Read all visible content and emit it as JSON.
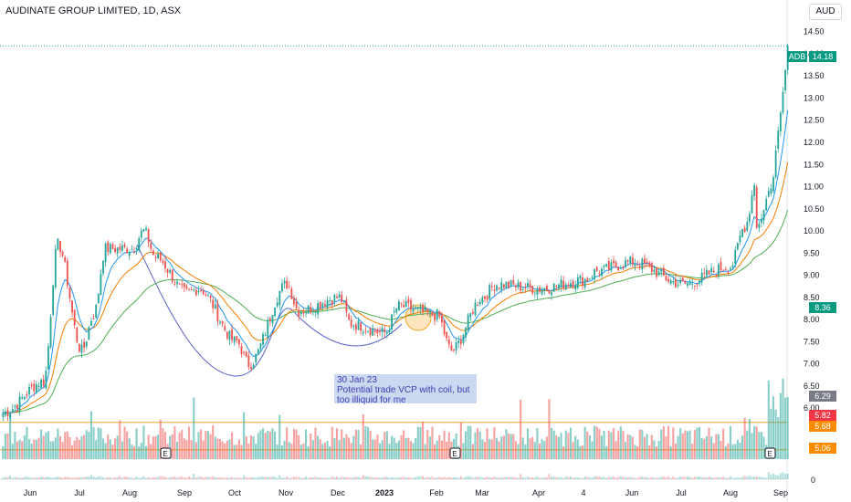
{
  "header": {
    "title": "AUDINATE GROUP LIMITED, 1D, ASX",
    "currency": "AUD"
  },
  "note": {
    "line1": "30 Jan 23",
    "line2": "Potential trade VCP with coil, but",
    "line3": "too illiquid for me"
  },
  "colors": {
    "up": "#26a69a",
    "down": "#ef5350",
    "ma_fast": "#2196f3",
    "ma_mid": "#f57c00",
    "ma_slow": "#4caf50",
    "curve": "#5b62c9",
    "hline": "#f5a623"
  },
  "price_tags": [
    {
      "label": "ADB",
      "value": "14.18",
      "bg": "#089981",
      "price": 14.18
    },
    {
      "label": "",
      "value": "8.36",
      "bg": "#089981",
      "price": 8.36
    },
    {
      "label": "",
      "value": "6.29",
      "bg": "#787b86",
      "price": 6.29
    },
    {
      "label": "",
      "value": "5.82",
      "bg": "#f23645",
      "price": 5.82
    },
    {
      "label": "",
      "value": "5.68",
      "bg": "#fb8c00",
      "price": 5.68
    },
    {
      "label": "",
      "value": "5.06",
      "bg": "#fb8c00",
      "price": 5.06
    }
  ],
  "events": [
    {
      "x": "Aug",
      "label": "E"
    },
    {
      "x": "Feb",
      "label": "E"
    },
    {
      "x": "Aug",
      "label": "E"
    }
  ],
  "chart_data": {
    "type": "candlestick",
    "symbol": "ADB",
    "interval": "1D",
    "ylim": [
      5.5,
      15.0
    ],
    "y_ticks": [
      "14.50",
      "14.00",
      "13.50",
      "13.00",
      "12.50",
      "12.00",
      "11.50",
      "11.00",
      "10.50",
      "10.00",
      "9.50",
      "9.00",
      "8.50",
      "8.00",
      "7.50",
      "7.00",
      "6.50",
      "6.00"
    ],
    "x_ticks": [
      "Jun",
      "Jul",
      "Aug",
      "Sep",
      "Oct",
      "Nov",
      "Dec",
      "2023",
      "Feb",
      "Mar",
      "Apr",
      "4",
      "Jun",
      "Jul",
      "Aug",
      "Sep"
    ],
    "volume_axis_label": "0",
    "horizontal_lines": [
      14.18
    ],
    "last_price": 14.18,
    "close_path": [
      {
        "x": "Jun",
        "y": 5.9
      },
      {
        "x": "Jun",
        "y": 6.6
      },
      {
        "x": "Jul",
        "y": 7.3
      },
      {
        "x": "Jul",
        "y": 8.1
      },
      {
        "x": "Aug",
        "y": 9.6
      },
      {
        "x": "Aug",
        "y": 10.0
      },
      {
        "x": "Aug",
        "y": 9.4
      },
      {
        "x": "Sep",
        "y": 8.6
      },
      {
        "x": "Sep",
        "y": 8.7
      },
      {
        "x": "Oct",
        "y": 7.5
      },
      {
        "x": "Oct",
        "y": 7.0
      },
      {
        "x": "Nov",
        "y": 8.8
      },
      {
        "x": "Nov",
        "y": 8.2
      },
      {
        "x": "Dec",
        "y": 8.5
      },
      {
        "x": "Dec",
        "y": 7.9
      },
      {
        "x": "2023",
        "y": 7.7
      },
      {
        "x": "2023",
        "y": 8.3
      },
      {
        "x": "Feb",
        "y": 8.1
      },
      {
        "x": "Feb",
        "y": 7.3
      },
      {
        "x": "Mar",
        "y": 8.5
      },
      {
        "x": "Mar",
        "y": 8.8
      },
      {
        "x": "Apr",
        "y": 8.7
      },
      {
        "x": "4",
        "y": 8.9
      },
      {
        "x": "4",
        "y": 9.1
      },
      {
        "x": "Jun",
        "y": 9.7
      },
      {
        "x": "Jun",
        "y": 9.3
      },
      {
        "x": "Jul",
        "y": 9.6
      },
      {
        "x": "Jul",
        "y": 8.8
      },
      {
        "x": "Aug",
        "y": 9.2
      },
      {
        "x": "Aug",
        "y": 10.1
      },
      {
        "x": "Aug",
        "y": 11.2
      },
      {
        "x": "Sep",
        "y": 14.18
      }
    ]
  }
}
